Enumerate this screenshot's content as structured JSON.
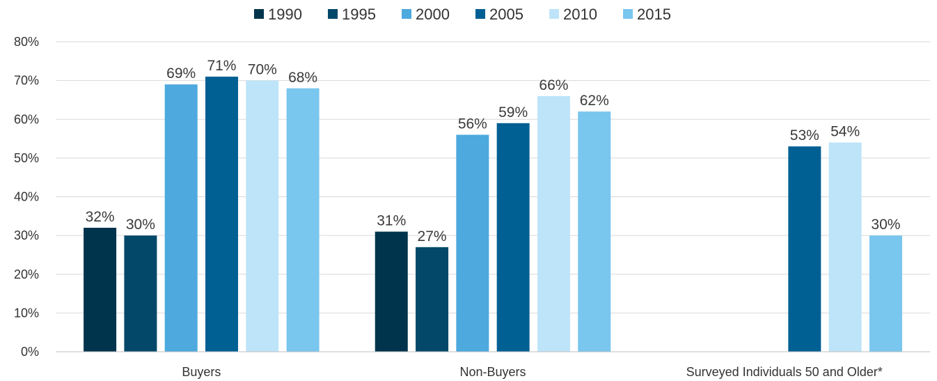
{
  "chart_data": {
    "type": "bar",
    "categories": [
      "Buyers",
      "Non-Buyers",
      "Surveyed Individuals 50 and Older*"
    ],
    "series": [
      {
        "name": "1990",
        "color": "#00344d",
        "values": [
          32,
          31,
          null
        ],
        "labels": [
          "32%",
          "31%",
          ""
        ]
      },
      {
        "name": "1995",
        "color": "#034869",
        "values": [
          30,
          27,
          null
        ],
        "labels": [
          "30%",
          "27%",
          ""
        ]
      },
      {
        "name": "2000",
        "color": "#4da9de",
        "values": [
          69,
          56,
          null
        ],
        "labels": [
          "69%",
          "56%",
          ""
        ]
      },
      {
        "name": "2005",
        "color": "#005f93",
        "values": [
          71,
          59,
          53
        ],
        "labels": [
          "71%",
          "59%",
          "53%"
        ]
      },
      {
        "name": "2010",
        "color": "#bde4f8",
        "values": [
          70,
          66,
          54
        ],
        "labels": [
          "70%",
          "66%",
          "54%"
        ]
      },
      {
        "name": "2015",
        "color": "#79c6ef",
        "values": [
          68,
          62,
          30
        ],
        "labels": [
          "68%",
          "62%",
          "30%"
        ]
      }
    ],
    "yticks": [
      "0%",
      "10%",
      "20%",
      "30%",
      "40%",
      "50%",
      "60%",
      "70%",
      "80%"
    ],
    "ylim": [
      0,
      80
    ],
    "grid": true,
    "legend": "top-center",
    "title": "",
    "xlabel": "",
    "ylabel": ""
  }
}
